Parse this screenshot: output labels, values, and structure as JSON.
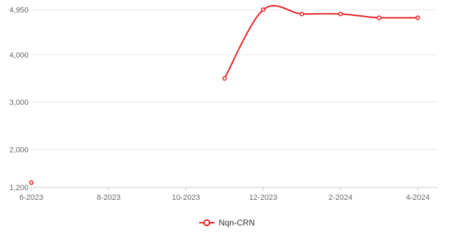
{
  "chart_data": {
    "type": "line",
    "title": "",
    "xlabel": "",
    "ylabel": "",
    "x_ticks": [
      "6-2023",
      "8-2023",
      "10-2023",
      "12-2023",
      "2-2024",
      "4-2024"
    ],
    "y_ticks": [
      "1,200",
      "2,000",
      "3,000",
      "4,000",
      "4,950"
    ],
    "ylim": [
      1200,
      4950
    ],
    "grid": true,
    "legend_position": "bottom",
    "series": [
      {
        "name": "Nqn-CRN",
        "color": "#e8191c",
        "points": [
          {
            "x": "6-2023",
            "y": 1300
          },
          {
            "x": "11-2023",
            "y": 3500
          },
          {
            "x": "12-2023",
            "y": 4950
          },
          {
            "x": "1-2024",
            "y": 4860
          },
          {
            "x": "2-2024",
            "y": 4860
          },
          {
            "x": "3-2024",
            "y": 4780
          },
          {
            "x": "4-2024",
            "y": 4780
          }
        ]
      }
    ]
  }
}
